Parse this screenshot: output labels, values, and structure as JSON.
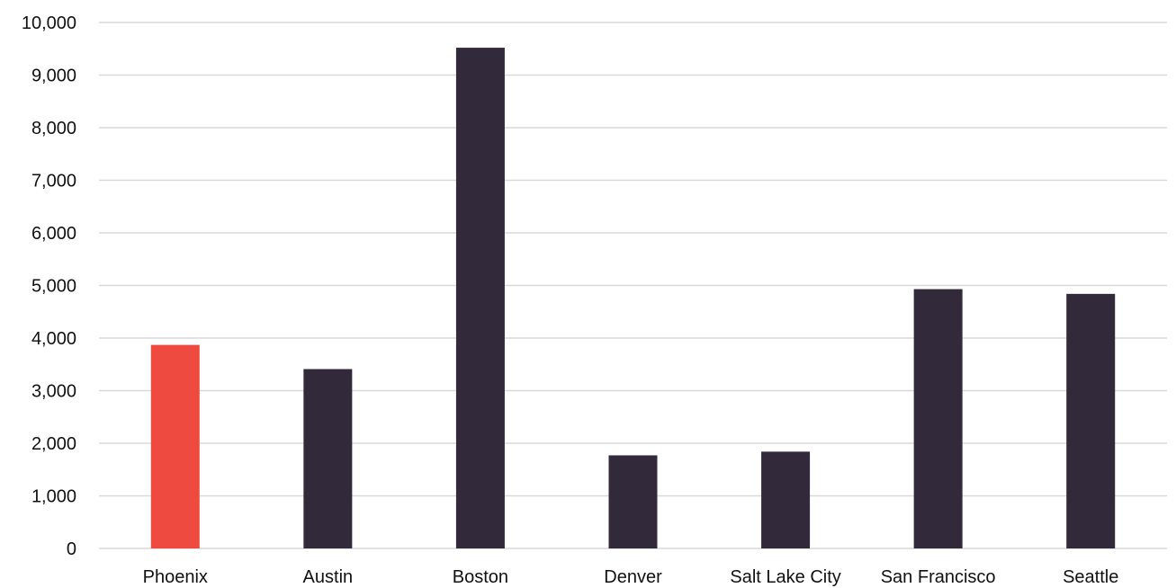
{
  "chart_data": {
    "type": "bar",
    "title": "",
    "xlabel": "",
    "ylabel": "",
    "ylim": [
      0,
      10000
    ],
    "yticks": [
      0,
      1000,
      2000,
      3000,
      4000,
      5000,
      6000,
      7000,
      8000,
      9000,
      10000
    ],
    "ytick_labels": [
      "0",
      "1,000",
      "2,000",
      "3,000",
      "4,000",
      "5,000",
      "6,000",
      "7,000",
      "8,000",
      "9,000",
      "10,000"
    ],
    "categories": [
      "Phoenix",
      "Austin",
      "Boston",
      "Denver",
      "Salt Lake City",
      "San Francisco",
      "Seattle"
    ],
    "values": [
      3870,
      3410,
      9520,
      1770,
      1840,
      4930,
      4840
    ],
    "highlight_category": "Phoenix",
    "grid": true,
    "legend": "none",
    "colors": {
      "highlight": "#ef4a3f",
      "bar": "#322a3a",
      "grid": "#d9d9d9",
      "text": "#111111"
    }
  }
}
